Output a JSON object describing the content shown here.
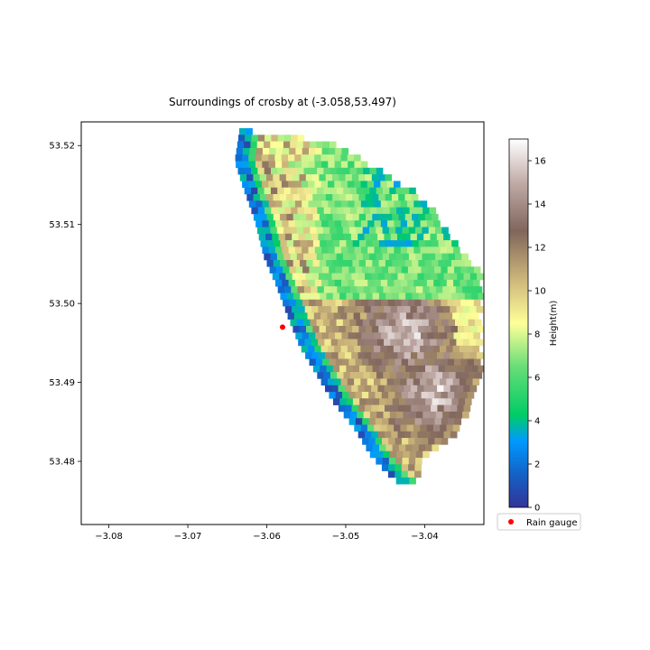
{
  "chart_data": {
    "type": "heatmap",
    "title": "Surroundings of crosby at (-3.058,53.497)",
    "xlabel": "",
    "ylabel": "",
    "xlim": [
      -3.0835,
      -3.0325
    ],
    "ylim": [
      53.472,
      53.523
    ],
    "x_ticks": [
      -3.08,
      -3.07,
      -3.06,
      -3.05,
      -3.04
    ],
    "x_tick_labels": [
      "−3.08",
      "−3.07",
      "−3.06",
      "−3.05",
      "−3.04"
    ],
    "y_ticks": [
      53.48,
      53.49,
      53.5,
      53.51,
      53.52
    ],
    "y_tick_labels": [
      "53.48",
      "53.49",
      "53.50",
      "53.51",
      "53.52"
    ],
    "colorbar": {
      "label": "Height(m)",
      "colormap": "terrain",
      "range": [
        0,
        17
      ],
      "ticks": [
        0,
        2,
        4,
        6,
        8,
        10,
        12,
        14,
        16
      ]
    },
    "grid": false,
    "series": [
      {
        "name": "Rain gauge",
        "type": "point",
        "x": -3.058,
        "y": 53.497,
        "color": "#ff0000"
      }
    ],
    "legend": {
      "placement": "below-colorbar",
      "entries": [
        "Rain gauge"
      ]
    },
    "terrain_zones": [
      {
        "zone": "northern area",
        "height_range_m": [
          3,
          9
        ]
      },
      {
        "zone": "southern area",
        "height_range_m": [
          9,
          16
        ]
      },
      {
        "zone": "western coast edge",
        "height_range_m": [
          0,
          4
        ]
      }
    ]
  }
}
